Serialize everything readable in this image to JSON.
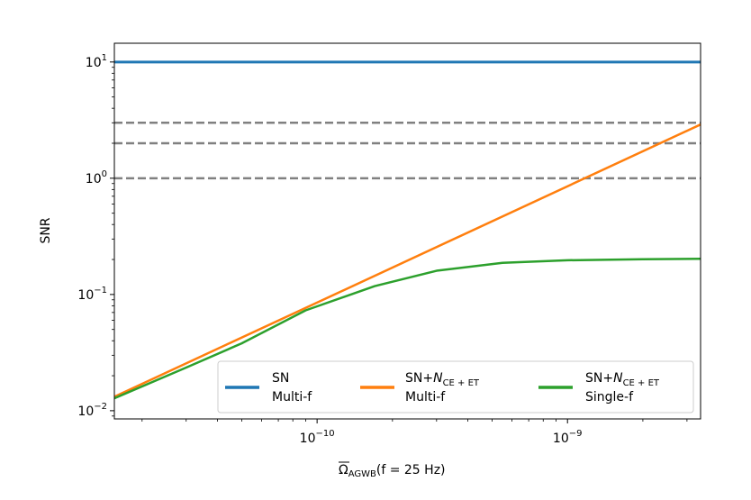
{
  "chart_data": {
    "type": "line",
    "xscale": "log",
    "yscale": "log",
    "xlim": [
      1.55e-11,
      3.4e-09
    ],
    "ylim": [
      0.0085,
      14.5
    ],
    "xlabel": {
      "base": "Ω",
      "sub": "AGWB",
      "rest": "(f = 25 Hz)"
    },
    "ylabel": "SNR",
    "x_ticks": [
      {
        "value": 1e-10,
        "base": "10",
        "exp": "−10"
      },
      {
        "value": 1e-09,
        "base": "10",
        "exp": "−9"
      }
    ],
    "y_ticks": [
      {
        "value": 0.01,
        "base": "10",
        "exp": "−2"
      },
      {
        "value": 0.1,
        "base": "10",
        "exp": "−1"
      },
      {
        "value": 1,
        "base": "10",
        "exp": "0"
      },
      {
        "value": 10,
        "base": "10",
        "exp": "1"
      }
    ],
    "reference_lines": {
      "y": [
        1,
        2,
        3
      ],
      "color": "#808080",
      "style": "dashed"
    },
    "series": [
      {
        "name": "SN Multi-f",
        "legend": [
          "SN",
          "Multi-f"
        ],
        "color": "#1f77b4",
        "x": [
          1.55e-11,
          3.4e-09
        ],
        "y": [
          10,
          10
        ]
      },
      {
        "name": "SN+N_CE+ET Multi-f",
        "legend": [
          "SN+",
          "N",
          "CE + ET",
          "Multi-f"
        ],
        "color": "#ff7f0e",
        "x": [
          1.55e-11,
          3.4e-09
        ],
        "y": [
          0.0132,
          2.9
        ]
      },
      {
        "name": "SN+N_CE+ET Single-f",
        "legend": [
          "SN+",
          "N",
          "CE + ET",
          "Single-f"
        ],
        "color": "#2ca02c",
        "x": [
          1.55e-11,
          3e-11,
          5e-11,
          9e-11,
          1.7e-10,
          3e-10,
          5.5e-10,
          1e-09,
          2e-09,
          3.4e-09
        ],
        "y": [
          0.0128,
          0.0235,
          0.038,
          0.073,
          0.118,
          0.16,
          0.187,
          0.197,
          0.201,
          0.203
        ]
      }
    ],
    "legend_placement": "lower-right"
  }
}
